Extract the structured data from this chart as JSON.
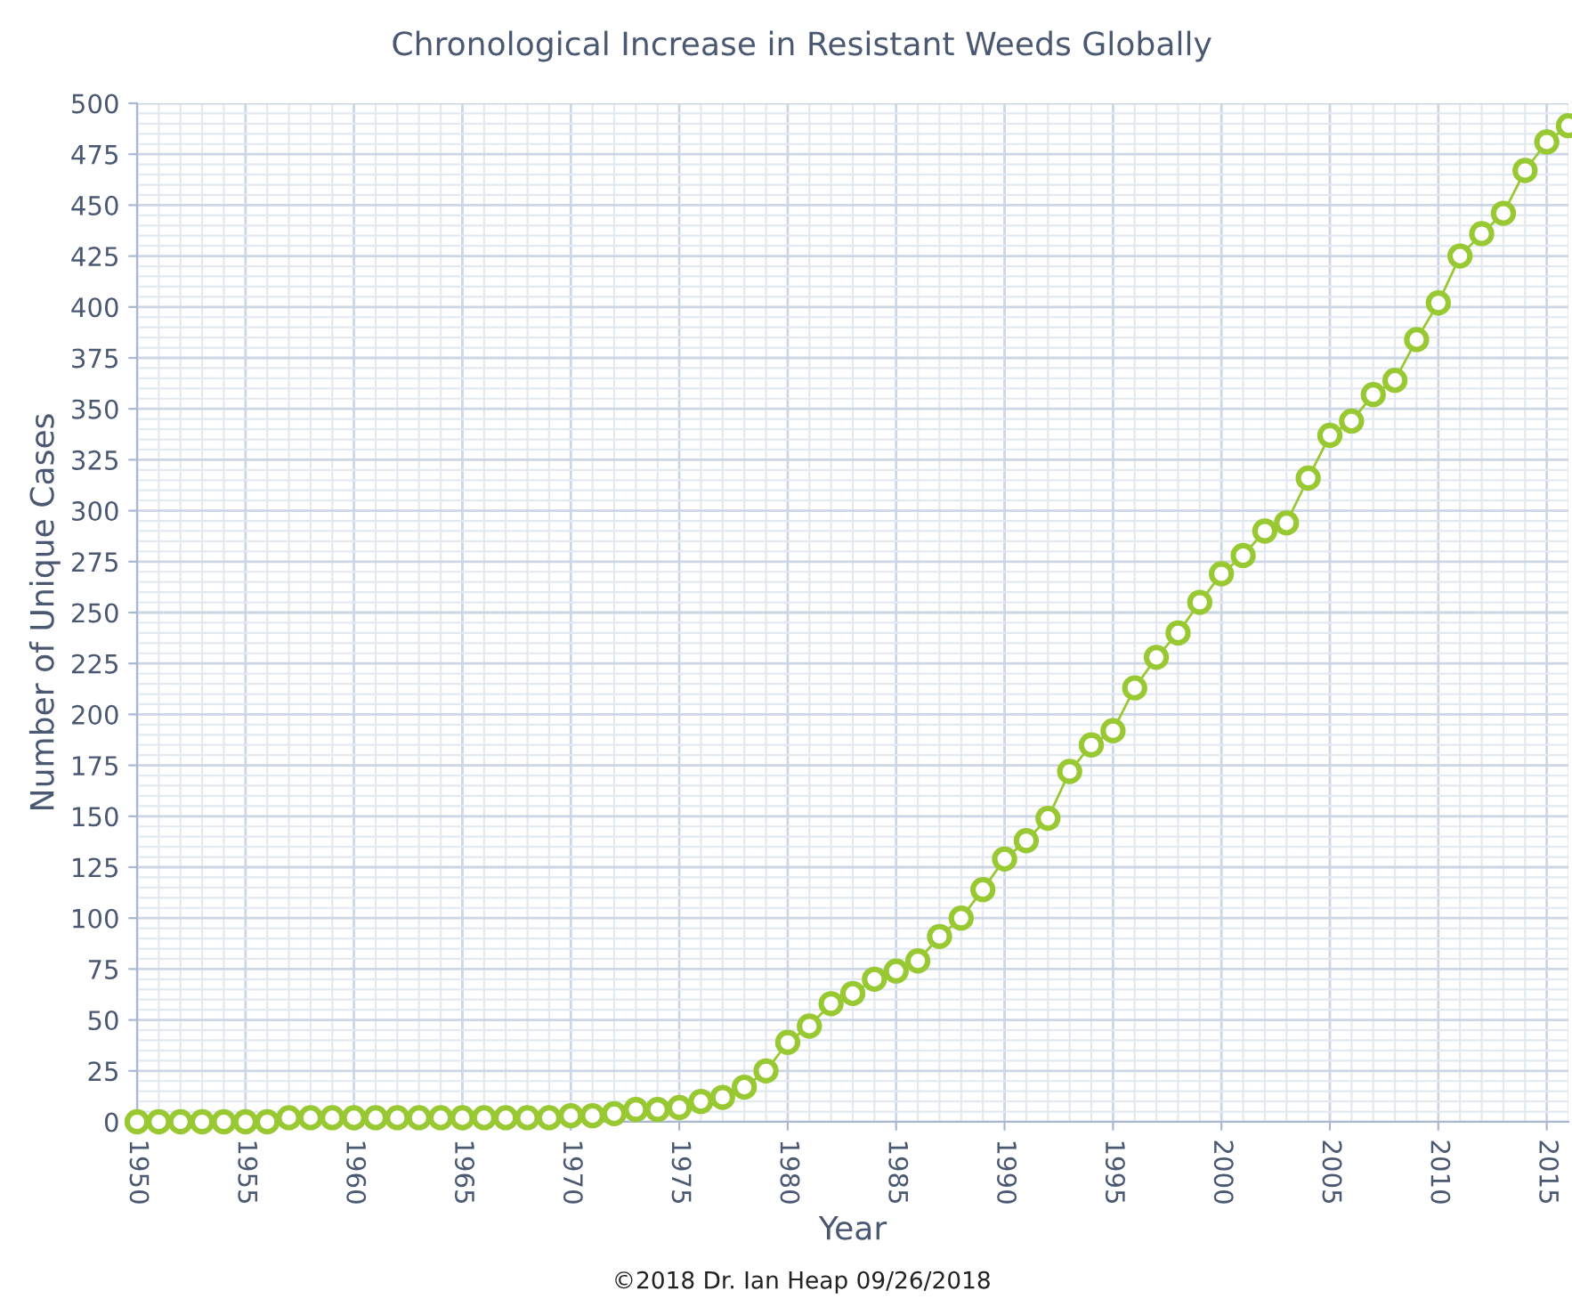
{
  "chart_data": {
    "type": "line",
    "title": "Chronological Increase in Resistant Weeds Globally",
    "xlabel": "Year",
    "ylabel": "Number of Unique Cases",
    "annotations": [
      "©2018 Dr. Ian Heap 09/26/2018"
    ],
    "x": [
      1950,
      1951,
      1952,
      1953,
      1954,
      1955,
      1956,
      1957,
      1958,
      1959,
      1960,
      1961,
      1962,
      1963,
      1964,
      1965,
      1966,
      1967,
      1968,
      1969,
      1970,
      1971,
      1972,
      1973,
      1974,
      1975,
      1976,
      1977,
      1978,
      1979,
      1980,
      1981,
      1982,
      1983,
      1984,
      1985,
      1986,
      1987,
      1988,
      1989,
      1990,
      1991,
      1992,
      1993,
      1994,
      1995,
      1996,
      1997,
      1998,
      1999,
      2000,
      2001,
      2002,
      2003,
      2004,
      2005,
      2006,
      2007,
      2008,
      2009,
      2010,
      2011,
      2012,
      2013,
      2014,
      2015,
      2016
    ],
    "series": [
      {
        "color": "#98c832",
        "values": [
          0,
          0,
          0,
          0,
          0,
          0,
          0,
          2,
          2,
          2,
          2,
          2,
          2,
          2,
          2,
          2,
          2,
          2,
          2,
          2,
          3,
          3,
          4,
          6,
          6,
          7,
          10,
          12,
          17,
          25,
          39,
          47,
          58,
          63,
          70,
          74,
          79,
          91,
          100,
          114,
          129,
          138,
          149,
          172,
          185,
          192,
          213,
          228,
          240,
          255,
          269,
          278,
          290,
          294,
          316,
          337,
          344,
          357,
          364,
          384,
          402,
          425,
          436,
          446,
          467,
          481,
          489
        ]
      }
    ],
    "xlim": [
      1950,
      2016
    ],
    "xticks": [
      1950,
      1955,
      1960,
      1965,
      1970,
      1975,
      1980,
      1985,
      1990,
      1995,
      2000,
      2005,
      2010,
      2015
    ],
    "ylim": [
      0,
      500
    ],
    "yticks": [
      0,
      25,
      50,
      75,
      100,
      125,
      150,
      175,
      200,
      225,
      250,
      275,
      300,
      325,
      350,
      375,
      400,
      425,
      450,
      475,
      500
    ],
    "grid": true,
    "legend": false,
    "marker": "circle",
    "line_style": "solid"
  }
}
